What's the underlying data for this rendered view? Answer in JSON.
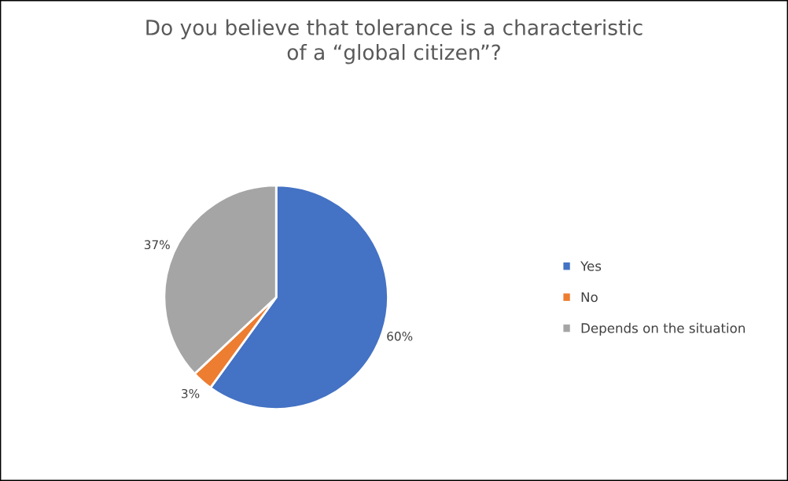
{
  "chart_data": {
    "type": "pie",
    "title": "Do you believe that tolerance is a characteristic\nof a “global citizen”?",
    "categories": [
      "Yes",
      "No",
      "Depends on the situation"
    ],
    "values": [
      60,
      3,
      37
    ],
    "colors": [
      "#4472c4",
      "#ed7d31",
      "#a5a5a5"
    ],
    "value_labels": [
      "60%",
      "3%",
      "37%"
    ],
    "legend": "right"
  }
}
